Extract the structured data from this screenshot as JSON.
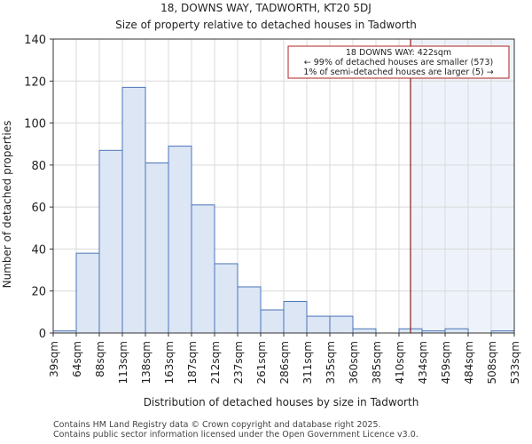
{
  "chart_data": {
    "type": "bar",
    "title_line1": "18, DOWNS WAY, TADWORTH, KT20 5DJ",
    "title_line2": "Size of property relative to detached houses in Tadworth",
    "xlabel": "Distribution of detached houses by size in Tadworth",
    "ylabel": "Number of detached properties",
    "ylim": [
      0,
      140
    ],
    "yticks": [
      0,
      20,
      40,
      60,
      80,
      100,
      120,
      140
    ],
    "bin_edges": [
      39,
      64,
      88,
      113,
      138,
      163,
      187,
      212,
      237,
      261,
      286,
      311,
      335,
      360,
      385,
      410,
      434,
      459,
      484,
      508,
      533
    ],
    "x_tick_labels": [
      "39sqm",
      "64sqm",
      "88sqm",
      "113sqm",
      "138sqm",
      "163sqm",
      "187sqm",
      "212sqm",
      "237sqm",
      "261sqm",
      "286sqm",
      "311sqm",
      "335sqm",
      "360sqm",
      "385sqm",
      "410sqm",
      "434sqm",
      "459sqm",
      "484sqm",
      "508sqm",
      "533sqm"
    ],
    "values": [
      1,
      38,
      87,
      117,
      81,
      89,
      61,
      33,
      22,
      11,
      15,
      8,
      8,
      2,
      0,
      2,
      1,
      2,
      0,
      1
    ],
    "property_marker": 422,
    "annotation": {
      "line1": "18 DOWNS WAY: 422sqm",
      "line2": "← 99% of detached houses are smaller (573)",
      "line3": "1% of semi-detached houses are larger (5) →"
    },
    "colors": {
      "bar_fill": "#dce6f4",
      "bar_edge": "#4a74b8",
      "highlight_region": "#eef3fb",
      "marker_line": "#8b1a1a",
      "annotation_border": "#b22222"
    }
  },
  "footer": {
    "line1": "Contains HM Land Registry data © Crown copyright and database right 2025.",
    "line2": "Contains public sector information licensed under the Open Government Licence v3.0."
  }
}
